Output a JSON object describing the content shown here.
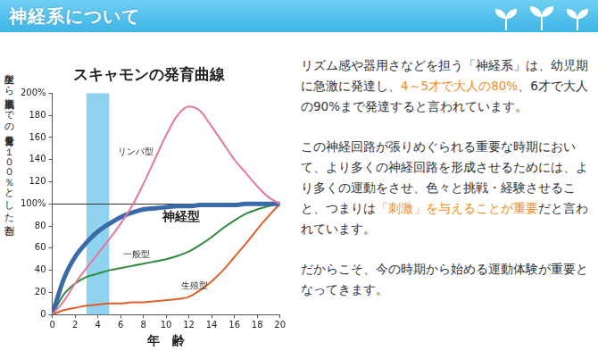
{
  "header": {
    "title": "神経系について"
  },
  "chart_data": {
    "type": "line",
    "title": "スキャモンの発育曲線",
    "x_label": "年　齢",
    "y_label": "誕生から成熟期までの発育量を１００％とした割合",
    "x": [
      0,
      1,
      2,
      3,
      4,
      5,
      6,
      7,
      8,
      9,
      10,
      11,
      12,
      13,
      14,
      15,
      16,
      17,
      18,
      19,
      20
    ],
    "series": [
      {
        "name": "リンパ型",
        "color": "#e8779b",
        "line_style": "solid",
        "label_position": [
          7.3,
          147
        ],
        "values": [
          0,
          12,
          28,
          42,
          55,
          68,
          82,
          98,
          118,
          140,
          162,
          180,
          188,
          184,
          170,
          155,
          140,
          128,
          116,
          106,
          100
        ]
      },
      {
        "name": "神経型",
        "color": "#3a6aa8",
        "line_style": "thick",
        "label_position": [
          11.3,
          88
        ],
        "values": [
          0,
          32,
          52,
          65,
          75,
          82,
          88,
          92,
          95,
          96,
          97,
          98,
          98,
          99,
          99,
          99,
          99,
          100,
          100,
          100,
          100
        ]
      },
      {
        "name": "一般型",
        "color": "#2e8b3e",
        "line_style": "solid",
        "label_position": [
          7.4,
          54
        ],
        "values": [
          0,
          18,
          28,
          34,
          37,
          40,
          42,
          44,
          46,
          48,
          50,
          53,
          57,
          63,
          70,
          78,
          85,
          91,
          95,
          98,
          100
        ]
      },
      {
        "name": "生殖型",
        "color": "#e0602a",
        "line_style": "solid",
        "label_position": [
          12.5,
          26
        ],
        "values": [
          0,
          4,
          6,
          8,
          9,
          10,
          10,
          11,
          11,
          12,
          13,
          14,
          16,
          22,
          30,
          40,
          52,
          64,
          77,
          89,
          100
        ]
      }
    ],
    "xlim": [
      0,
      20
    ],
    "xticks": [
      0,
      2,
      4,
      6,
      8,
      10,
      12,
      14,
      16,
      18,
      20
    ],
    "ylim": [
      0,
      200
    ],
    "yticks": [
      0,
      20,
      40,
      60,
      80,
      {
        "value": 100,
        "label": "100%"
      },
      120,
      140,
      160,
      180,
      {
        "value": 200,
        "label": "200%"
      }
    ],
    "grid": false,
    "highlight_range": [
      3,
      5
    ],
    "reference_line": 100
  },
  "text": {
    "paragraphs": [
      {
        "segments": [
          {
            "text": "リズム感や器用さなどを担う「神経系」は、幼児期に急激に発達し、"
          },
          {
            "text": "4～5才で大人の80%",
            "color": "#f08c1e"
          },
          {
            "text": "、6才で大人の90%まで発達すると言われています。"
          }
        ]
      },
      {
        "segments": [
          {
            "text": "この神経回路が張りめぐられる重要な時期において、より多くの神経回路を形成させるためには、より多くの運動をさせ、色々と挑戦・経験させること、つまりは"
          },
          {
            "text": "「刺激」を与えることが重要",
            "color": "#f08c1e"
          },
          {
            "text": "だと言われています。"
          }
        ]
      },
      {
        "segments": [
          {
            "text": "だからこそ、今の時期から始める運動体験が重要となってきます。"
          }
        ]
      }
    ]
  }
}
